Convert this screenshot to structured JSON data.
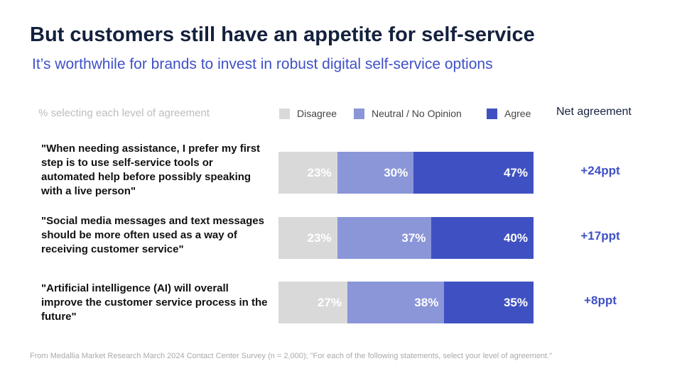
{
  "title": "But customers still have an appetite for self-service",
  "subtitle": "It’s worthwhile for brands to invest in robust digital self-service options",
  "chart_data": {
    "type": "bar",
    "orientation": "horizontal-stacked-100",
    "axis_note": "% selecting each level of agreement",
    "net_header": "Net agreement",
    "colors": {
      "Disagree": "#d9d9d9",
      "Neutral / No Opinion": "#8a96d8",
      "Agree": "#3f51c2"
    },
    "categories": [
      "\"When needing assistance, I prefer my first step is to use self-service tools or automated help before possibly speaking with a live person\"",
      "\"Social media messages and text messages should be more often used as a way of receiving customer service\"",
      "\"Artificial intelligence (AI) will overall improve the customer service process in the future\""
    ],
    "series": [
      {
        "name": "Disagree",
        "values": [
          23,
          23,
          27
        ],
        "labels": [
          "23%",
          "23%",
          "27%"
        ]
      },
      {
        "name": "Neutral / No Opinion",
        "values": [
          30,
          37,
          38
        ],
        "labels": [
          "30%",
          "37%",
          "38%"
        ]
      },
      {
        "name": "Agree",
        "values": [
          47,
          40,
          35
        ],
        "labels": [
          "47%",
          "40%",
          "35%"
        ]
      }
    ],
    "net": [
      "+24ppt",
      "+17ppt",
      "+8ppt"
    ],
    "xlim": [
      0,
      100
    ]
  },
  "source": "From Medallia Market Research March 2024 Contact Center Survey (n = 2,000); \"For each of the following statements, select your level of agreement.\""
}
